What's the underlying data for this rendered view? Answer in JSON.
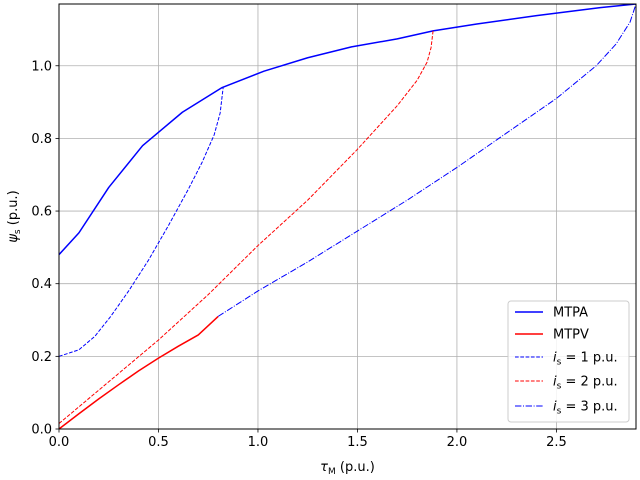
{
  "chart_data": {
    "type": "line",
    "xlabel_main": "τ",
    "xlabel_sub": "M",
    "xlabel_unit": " (p.u.)",
    "ylabel_main": "ψ",
    "ylabel_sub": "s",
    "ylabel_unit": " (p.u.)",
    "xlim": [
      0,
      2.9
    ],
    "ylim": [
      0,
      1.17
    ],
    "xticks": [
      0.0,
      0.5,
      1.0,
      1.5,
      2.0,
      2.5
    ],
    "xtick_labels": [
      "0.0",
      "0.5",
      "1.0",
      "1.5",
      "2.0",
      "2.5"
    ],
    "yticks": [
      0.0,
      0.2,
      0.4,
      0.6,
      0.8,
      1.0
    ],
    "ytick_labels": [
      "0.0",
      "0.2",
      "0.4",
      "0.6",
      "0.8",
      "1.0"
    ],
    "grid": true,
    "legend_position": "lower-right",
    "series": [
      {
        "name": "MTPA",
        "legend_text": "MTPA",
        "color": "#0000ff",
        "style": "solid",
        "points": [
          [
            0.0,
            0.48
          ],
          [
            0.1,
            0.54
          ],
          [
            0.25,
            0.665
          ],
          [
            0.42,
            0.78
          ],
          [
            0.62,
            0.872
          ],
          [
            0.82,
            0.94
          ],
          [
            1.03,
            0.985
          ],
          [
            1.25,
            1.022
          ],
          [
            1.47,
            1.052
          ],
          [
            1.7,
            1.074
          ],
          [
            1.88,
            1.096
          ],
          [
            2.1,
            1.115
          ],
          [
            2.4,
            1.138
          ],
          [
            2.72,
            1.16
          ],
          [
            2.9,
            1.17
          ]
        ]
      },
      {
        "name": "MTPV",
        "legend_text": "MTPV",
        "color": "#ff0000",
        "style": "solid",
        "points": [
          [
            0.0,
            0.0
          ],
          [
            0.1,
            0.042
          ],
          [
            0.2,
            0.083
          ],
          [
            0.3,
            0.122
          ],
          [
            0.4,
            0.16
          ],
          [
            0.5,
            0.195
          ],
          [
            0.6,
            0.228
          ],
          [
            0.7,
            0.259
          ],
          [
            0.8,
            0.31
          ]
        ]
      },
      {
        "name": "is = 1 p.u.",
        "legend_main": "i",
        "legend_sub": "s",
        "legend_rest": " =  1 p.u.",
        "color": "#0000ff",
        "style": "dashed",
        "points": [
          [
            0.0,
            0.2
          ],
          [
            0.1,
            0.218
          ],
          [
            0.18,
            0.255
          ],
          [
            0.26,
            0.31
          ],
          [
            0.35,
            0.38
          ],
          [
            0.45,
            0.465
          ],
          [
            0.55,
            0.56
          ],
          [
            0.65,
            0.66
          ],
          [
            0.72,
            0.735
          ],
          [
            0.78,
            0.81
          ],
          [
            0.81,
            0.87
          ],
          [
            0.825,
            0.94
          ]
        ]
      },
      {
        "name": "is = 2 p.u.",
        "legend_main": "i",
        "legend_sub": "s",
        "legend_rest": " =  2 p.u.",
        "color": "#ff0000",
        "style": "dashed",
        "points": [
          [
            0.0,
            0.015
          ],
          [
            0.25,
            0.13
          ],
          [
            0.5,
            0.245
          ],
          [
            0.75,
            0.37
          ],
          [
            1.0,
            0.505
          ],
          [
            1.25,
            0.63
          ],
          [
            1.5,
            0.77
          ],
          [
            1.7,
            0.89
          ],
          [
            1.8,
            0.96
          ],
          [
            1.85,
            1.01
          ],
          [
            1.87,
            1.05
          ],
          [
            1.88,
            1.096
          ]
        ]
      },
      {
        "name": "is = 3 p.u.",
        "legend_main": "i",
        "legend_sub": "s",
        "legend_rest": " =  3 p.u.",
        "color": "#0000ff",
        "style": "dashdot",
        "points": [
          [
            0.8,
            0.31
          ],
          [
            1.0,
            0.38
          ],
          [
            1.25,
            0.46
          ],
          [
            1.5,
            0.545
          ],
          [
            1.75,
            0.63
          ],
          [
            2.0,
            0.72
          ],
          [
            2.25,
            0.815
          ],
          [
            2.5,
            0.91
          ],
          [
            2.7,
            1.0
          ],
          [
            2.8,
            1.06
          ],
          [
            2.87,
            1.12
          ],
          [
            2.9,
            1.17
          ]
        ]
      }
    ]
  }
}
